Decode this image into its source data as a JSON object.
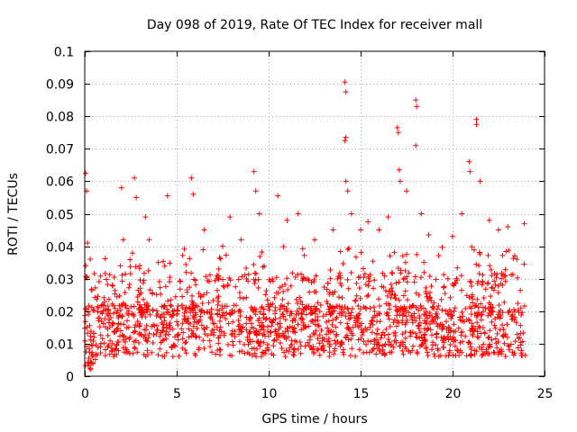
{
  "chart_data": {
    "type": "scatter",
    "title": "Day 098 of 2019, Rate Of TEC Index for receiver mall",
    "xlabel": "GPS time / hours",
    "ylabel": "ROTI / TECUs",
    "xlim": [
      0,
      25
    ],
    "ylim": [
      0,
      0.1
    ],
    "xticks": [
      0,
      5,
      10,
      15,
      20,
      25
    ],
    "xtick_labels": [
      "0",
      "5",
      "10",
      "15",
      "20",
      "25"
    ],
    "yticks": [
      0,
      0.01,
      0.02,
      0.03,
      0.04,
      0.05,
      0.06,
      0.07,
      0.08,
      0.09,
      0.1
    ],
    "ytick_labels": [
      "0",
      "0.01",
      "0.02",
      "0.03",
      "0.04",
      "0.05",
      "0.06",
      "0.07",
      "0.08",
      "0.09",
      "0.1"
    ],
    "grid": true,
    "marker": "+",
    "series": [
      {
        "name": "ROTI",
        "color": "#ff0000",
        "data_range_hours": [
          0,
          24
        ],
        "points": [
          [
            0.05,
            0.0625
          ],
          [
            0.1,
            0.057
          ],
          [
            0.15,
            0.041
          ],
          [
            0.3,
            0.036
          ],
          [
            0.5,
            0.012
          ],
          [
            1.0,
            0.02
          ],
          [
            1.5,
            0.028
          ],
          [
            2.0,
            0.058
          ],
          [
            2.1,
            0.042
          ],
          [
            2.7,
            0.061
          ],
          [
            2.8,
            0.055
          ],
          [
            3.3,
            0.049
          ],
          [
            3.5,
            0.042
          ],
          [
            4.5,
            0.0555
          ],
          [
            4.0,
            0.035
          ],
          [
            5.8,
            0.061
          ],
          [
            5.9,
            0.056
          ],
          [
            6.5,
            0.045
          ],
          [
            7.5,
            0.04
          ],
          [
            7.9,
            0.049
          ],
          [
            8.5,
            0.042
          ],
          [
            9.2,
            0.063
          ],
          [
            9.3,
            0.057
          ],
          [
            9.5,
            0.05
          ],
          [
            10.5,
            0.0555
          ],
          [
            11.0,
            0.048
          ],
          [
            11.6,
            0.05
          ],
          [
            12.5,
            0.042
          ],
          [
            13.5,
            0.045
          ],
          [
            14.15,
            0.0905
          ],
          [
            14.2,
            0.0875
          ],
          [
            14.2,
            0.0735
          ],
          [
            14.15,
            0.0725
          ],
          [
            14.2,
            0.06
          ],
          [
            14.3,
            0.057
          ],
          [
            14.5,
            0.05
          ],
          [
            15.0,
            0.045
          ],
          [
            15.4,
            0.0475
          ],
          [
            16.0,
            0.045
          ],
          [
            16.5,
            0.049
          ],
          [
            17.0,
            0.0765
          ],
          [
            17.05,
            0.075
          ],
          [
            17.1,
            0.0635
          ],
          [
            17.15,
            0.06
          ],
          [
            17.5,
            0.057
          ],
          [
            18.0,
            0.085
          ],
          [
            18.05,
            0.083
          ],
          [
            18.0,
            0.071
          ],
          [
            18.3,
            0.05
          ],
          [
            18.7,
            0.0435
          ],
          [
            20.0,
            0.043
          ],
          [
            20.5,
            0.05
          ],
          [
            20.9,
            0.066
          ],
          [
            20.95,
            0.063
          ],
          [
            21.3,
            0.079
          ],
          [
            21.3,
            0.0775
          ],
          [
            21.5,
            0.06
          ],
          [
            22.0,
            0.048
          ],
          [
            22.5,
            0.045
          ],
          [
            23.0,
            0.046
          ],
          [
            23.5,
            0.036
          ],
          [
            23.9,
            0.047
          ]
        ]
      }
    ]
  }
}
